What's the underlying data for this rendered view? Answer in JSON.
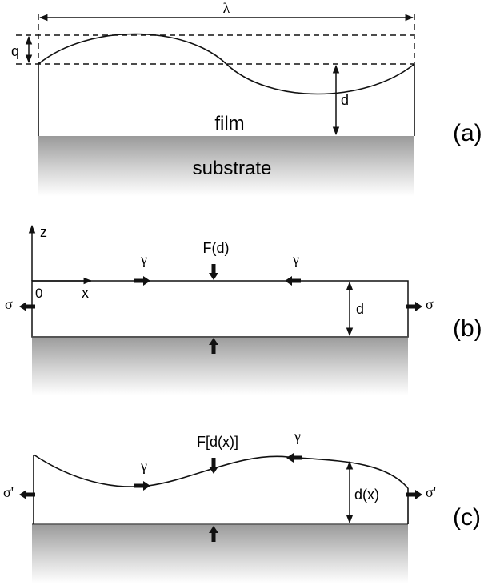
{
  "panel_a": {
    "tag": "(a)",
    "wavelength_symbol": "λ",
    "amplitude_symbol": "q",
    "thickness_symbol": "d",
    "film_label": "film",
    "substrate_label": "substrate"
  },
  "panel_b": {
    "tag": "(b)",
    "z_axis_label": "z",
    "x_axis_label": "x",
    "origin_label": "0",
    "force_label": "F(d)",
    "gamma_left": "γ",
    "gamma_right": "γ",
    "sigma_left": "σ",
    "sigma_right": "σ",
    "thickness_symbol": "d"
  },
  "panel_c": {
    "tag": "(c)",
    "force_label": "F[d(x)]",
    "gamma_left": "γ",
    "gamma_right": "γ",
    "sigma_left": "σ'",
    "sigma_right": "σ'",
    "thickness_symbol": "d(x)"
  }
}
